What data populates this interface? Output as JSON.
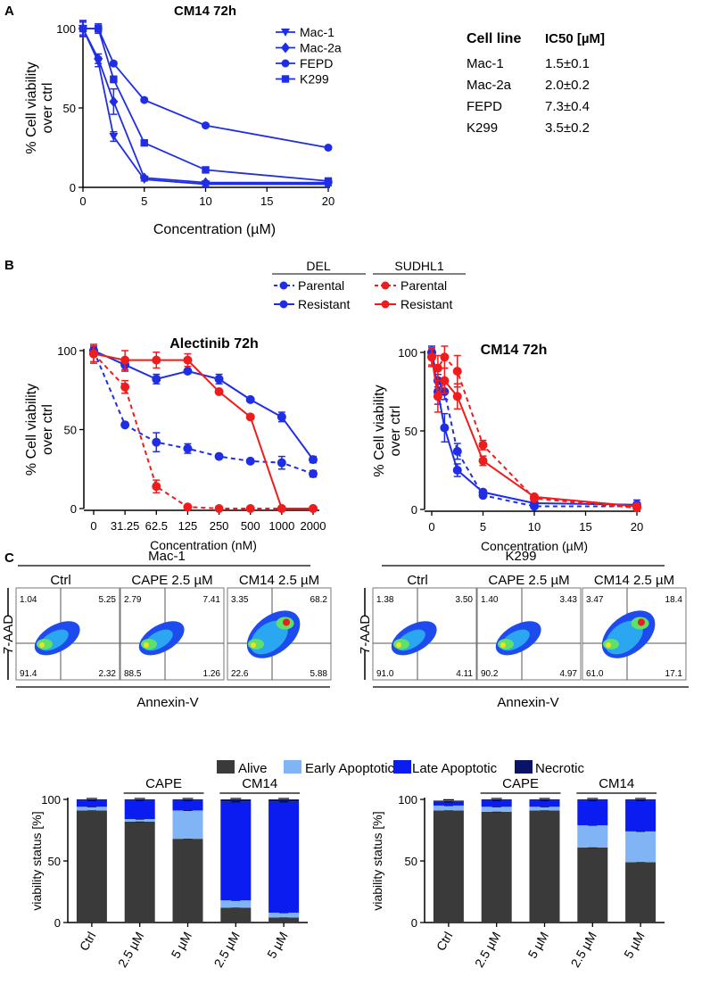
{
  "panel_labels": {
    "a": "A",
    "b": "B",
    "c": "C"
  },
  "colors": {
    "blue": "#1f2ee6",
    "red": "#ee1c1c",
    "alive": "#3a3a3a",
    "early": "#80b4f4",
    "late": "#0a1cf0",
    "necrotic": "#0a1466"
  },
  "ic50_table": {
    "header": [
      "Cell line",
      "IC50 [µM]"
    ],
    "rows": [
      [
        "Mac-1",
        "1.5±0.1"
      ],
      [
        "Mac-2a",
        "2.0±0.2"
      ],
      [
        "FEPD",
        "7.3±0.4"
      ],
      [
        "K299",
        "3.5±0.2"
      ]
    ]
  },
  "legend_b": {
    "groups": [
      "DEL",
      "SUDHL1"
    ],
    "parental": "Parental",
    "resistant": "Resistant"
  },
  "flow": {
    "ylabel": "7-AAD",
    "xlabel": "Annexin-V",
    "blocks": [
      {
        "cell_line": "Mac-1",
        "conditions": [
          "Ctrl",
          "CAPE 2.5 µM",
          "CM14 2.5 µM"
        ],
        "quadrants": [
          [
            "1.04",
            "5.25",
            "91.4",
            "2.32"
          ],
          [
            "2.79",
            "7.41",
            "88.5",
            "1.26"
          ],
          [
            "3.35",
            "68.2",
            "22.6",
            "5.88"
          ]
        ]
      },
      {
        "cell_line": "K299",
        "conditions": [
          "Ctrl",
          "CAPE 2.5 µM",
          "CM14 2.5 µM"
        ],
        "quadrants": [
          [
            "1.38",
            "3.50",
            "91.0",
            "4.11"
          ],
          [
            "1.40",
            "3.43",
            "90.2",
            "4.97"
          ],
          [
            "3.47",
            "18.4",
            "61.0",
            "17.1"
          ]
        ]
      }
    ]
  },
  "chart_data": [
    {
      "id": "a",
      "type": "line",
      "title": "CM14 72h",
      "xlabel": "Concentration (µM)",
      "ylabel": [
        "% Cell viability",
        "over ctrl"
      ],
      "xlim": [
        0,
        20
      ],
      "ylim": [
        0,
        100
      ],
      "xticks": [
        0,
        5,
        10,
        15,
        20
      ],
      "yticks": [
        0,
        50,
        100
      ],
      "series": [
        {
          "name": "Mac-1",
          "marker": "triangle-down",
          "x": [
            0,
            1.25,
            2.5,
            5,
            10,
            20
          ],
          "y": [
            100,
            79,
            32,
            5,
            2,
            2
          ],
          "err": [
            5,
            3,
            3,
            1,
            1,
            1
          ]
        },
        {
          "name": "Mac-2a",
          "marker": "diamond",
          "x": [
            0,
            1.25,
            2.5,
            5,
            10,
            20
          ],
          "y": [
            100,
            81,
            54,
            6,
            3,
            3
          ],
          "err": [
            5,
            3,
            8,
            1,
            1,
            1
          ]
        },
        {
          "name": "FEPD",
          "marker": "circle",
          "x": [
            0,
            1.25,
            2.5,
            5,
            10,
            20
          ],
          "y": [
            100,
            100,
            78,
            55,
            39,
            25
          ],
          "err": [
            4,
            2,
            1,
            1,
            1,
            1
          ]
        },
        {
          "name": "K299",
          "marker": "square",
          "x": [
            0,
            1.25,
            2.5,
            5,
            10,
            20
          ],
          "y": [
            100,
            100,
            68,
            28,
            11,
            4
          ],
          "err": [
            5,
            3,
            2,
            1,
            1,
            1
          ]
        }
      ]
    },
    {
      "id": "b1",
      "type": "line",
      "title": "Alectinib 72h",
      "xlabel": "Concentration (nM)",
      "ylabel": [
        "% Cell viability",
        "over ctrl"
      ],
      "categories": [
        "0",
        "31.25",
        "62.5",
        "125",
        "250",
        "500",
        "1000",
        "2000"
      ],
      "ylim": [
        0,
        100
      ],
      "yticks": [
        0,
        50,
        100
      ],
      "series": [
        {
          "name": "DEL Parental",
          "color": "blue",
          "dashed": true,
          "y": [
            100,
            53,
            42,
            38,
            33,
            30,
            29,
            22
          ],
          "err": [
            2,
            1,
            6,
            3,
            1,
            1,
            4,
            2
          ]
        },
        {
          "name": "DEL Resistant",
          "color": "blue",
          "dashed": false,
          "y": [
            100,
            91,
            82,
            87,
            82,
            69,
            58,
            31
          ],
          "err": [
            2,
            4,
            3,
            1,
            3,
            1,
            3,
            2
          ]
        },
        {
          "name": "SUDHL1 Parental",
          "color": "red",
          "dashed": true,
          "y": [
            98,
            77,
            14,
            1,
            0,
            0,
            0,
            0
          ],
          "err": [
            6,
            4,
            4,
            1,
            1,
            1,
            1,
            1
          ]
        },
        {
          "name": "SUDHL1 Resistant",
          "color": "red",
          "dashed": false,
          "y": [
            98,
            94,
            94,
            94,
            74,
            58,
            0,
            0
          ],
          "err": [
            5,
            6,
            5,
            4,
            1,
            1,
            1,
            1
          ]
        }
      ]
    },
    {
      "id": "b2",
      "type": "line",
      "title": "CM14 72h",
      "xlabel": "Concentration (µM)",
      "ylabel": [
        "% Cell viability",
        "over ctrl"
      ],
      "xlim": [
        0,
        20
      ],
      "ylim": [
        0,
        100
      ],
      "xticks": [
        0,
        5,
        10,
        15,
        20
      ],
      "yticks": [
        0,
        50,
        100
      ],
      "series": [
        {
          "name": "DEL Parental",
          "color": "blue",
          "dashed": true,
          "x": [
            0,
            0.6,
            1.25,
            2.5,
            5,
            10,
            20
          ],
          "y": [
            100,
            82,
            75,
            37,
            9,
            2,
            2
          ],
          "err": [
            3,
            4,
            5,
            5,
            1,
            1,
            1
          ]
        },
        {
          "name": "DEL Resistant",
          "color": "blue",
          "dashed": false,
          "x": [
            0,
            0.6,
            1.25,
            2.5,
            5,
            10,
            20
          ],
          "y": [
            100,
            75,
            52,
            25,
            11,
            4,
            3
          ],
          "err": [
            4,
            8,
            9,
            4,
            1,
            1,
            3
          ]
        },
        {
          "name": "SUDHL1 Parental",
          "color": "red",
          "dashed": true,
          "x": [
            0,
            0.6,
            1.25,
            2.5,
            5,
            10,
            20
          ],
          "y": [
            97,
            90,
            97,
            88,
            41,
            7,
            1
          ],
          "err": [
            5,
            8,
            7,
            10,
            3,
            1,
            1
          ]
        },
        {
          "name": "SUDHL1 Resistant",
          "color": "red",
          "dashed": false,
          "x": [
            0,
            0.6,
            1.25,
            2.5,
            5,
            10,
            20
          ],
          "y": [
            97,
            72,
            82,
            72,
            31,
            8,
            2
          ],
          "err": [
            6,
            10,
            8,
            8,
            3,
            1,
            1
          ]
        }
      ]
    },
    {
      "id": "c1",
      "type": "bar",
      "stacked": true,
      "ylabel": "viability status [%]",
      "legend": [
        "Alive",
        "Early Apoptotic",
        "Late Apoptotic",
        "Necrotic"
      ],
      "categories": [
        "Ctrl",
        "2.5 µM",
        "5 µM",
        "2.5 µM",
        "5 µM"
      ],
      "groups": [
        {
          "label": "CAPE",
          "from": 1,
          "to": 2
        },
        {
          "label": "CM14",
          "from": 3,
          "to": 4
        }
      ],
      "ylim": [
        0,
        100
      ],
      "yticks": [
        0,
        50,
        100
      ],
      "series": [
        {
          "name": "Alive",
          "values": [
            91,
            82,
            68,
            12,
            4
          ]
        },
        {
          "name": "Early Apoptotic",
          "values": [
            3,
            2,
            23,
            6,
            4
          ]
        },
        {
          "name": "Late Apoptotic",
          "values": [
            5,
            15,
            8,
            80,
            90
          ]
        },
        {
          "name": "Necrotic",
          "values": [
            1,
            1,
            1,
            2,
            2
          ]
        }
      ]
    },
    {
      "id": "c2",
      "type": "bar",
      "stacked": true,
      "ylabel": "viability status [%]",
      "categories": [
        "Ctrl",
        "2.5 µM",
        "5 µM",
        "2.5 µM",
        "5 µM"
      ],
      "groups": [
        {
          "label": "CAPE",
          "from": 1,
          "to": 2
        },
        {
          "label": "CM14",
          "from": 3,
          "to": 4
        }
      ],
      "ylim": [
        0,
        100
      ],
      "yticks": [
        0,
        50,
        100
      ],
      "series": [
        {
          "name": "Alive",
          "values": [
            91,
            90,
            91,
            61,
            49
          ]
        },
        {
          "name": "Early Apoptotic",
          "values": [
            4,
            4,
            3,
            18,
            25
          ]
        },
        {
          "name": "Late Apoptotic",
          "values": [
            3,
            5,
            5,
            20,
            25
          ]
        },
        {
          "name": "Necrotic",
          "values": [
            1,
            1,
            1,
            1,
            1
          ]
        }
      ]
    }
  ]
}
